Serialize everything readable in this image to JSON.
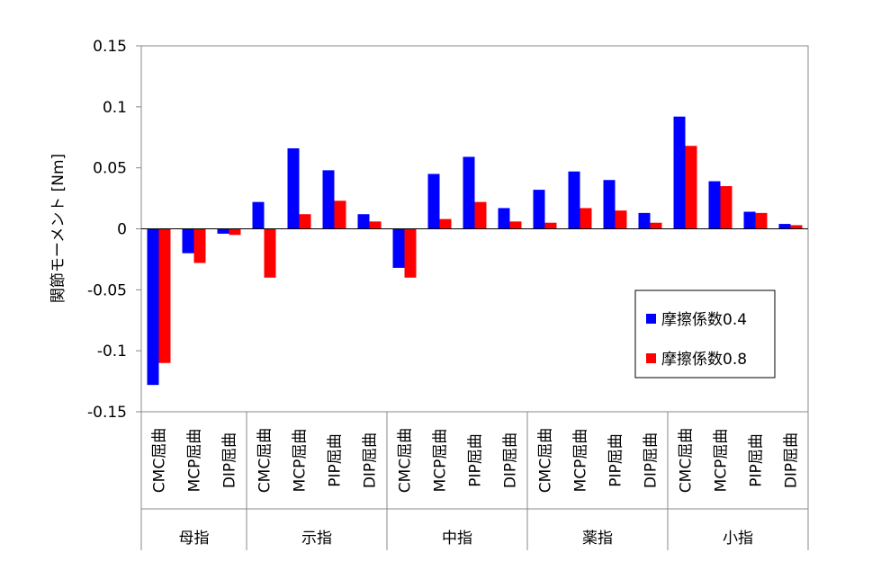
{
  "chart_data": {
    "type": "bar",
    "title": "",
    "xlabel": "",
    "ylabel": "関節モーメント [Nm]",
    "ylim": [
      -0.15,
      0.15
    ],
    "yticks": [
      "0.15",
      "0.1",
      "0.05",
      "0",
      "-0.05",
      "-0.1",
      "-0.15"
    ],
    "ytick_values": [
      0.15,
      0.1,
      0.05,
      0,
      -0.05,
      -0.1,
      -0.15
    ],
    "grid": false,
    "legend_position": "right",
    "categories": [
      "CMC屈曲",
      "MCP屈曲",
      "DIP屈曲",
      "CMC屈曲",
      "MCP屈曲",
      "PIP屈曲",
      "DIP屈曲",
      "CMC屈曲",
      "MCP屈曲",
      "PIP屈曲",
      "DIP屈曲",
      "CMC屈曲",
      "MCP屈曲",
      "PIP屈曲",
      "DIP屈曲",
      "CMC屈曲",
      "MCP屈曲",
      "PIP屈曲",
      "DIP屈曲"
    ],
    "groups": [
      {
        "label": "母指",
        "count": 3
      },
      {
        "label": "示指",
        "count": 4
      },
      {
        "label": "中指",
        "count": 4
      },
      {
        "label": "薬指",
        "count": 4
      },
      {
        "label": "小指",
        "count": 4
      }
    ],
    "series": [
      {
        "name": "摩擦係数0.4",
        "color": "#0000ff",
        "values": [
          -0.128,
          -0.02,
          -0.004,
          0.022,
          0.066,
          0.048,
          0.012,
          -0.032,
          0.045,
          0.059,
          0.017,
          0.032,
          0.047,
          0.04,
          0.013,
          0.092,
          0.039,
          0.014,
          0.004
        ]
      },
      {
        "name": "摩擦係数0.8",
        "color": "#ff0000",
        "values": [
          -0.11,
          -0.028,
          -0.005,
          -0.04,
          0.012,
          0.023,
          0.006,
          -0.04,
          0.008,
          0.022,
          0.006,
          0.005,
          0.017,
          0.015,
          0.005,
          0.068,
          0.035,
          0.013,
          0.003
        ]
      }
    ]
  }
}
